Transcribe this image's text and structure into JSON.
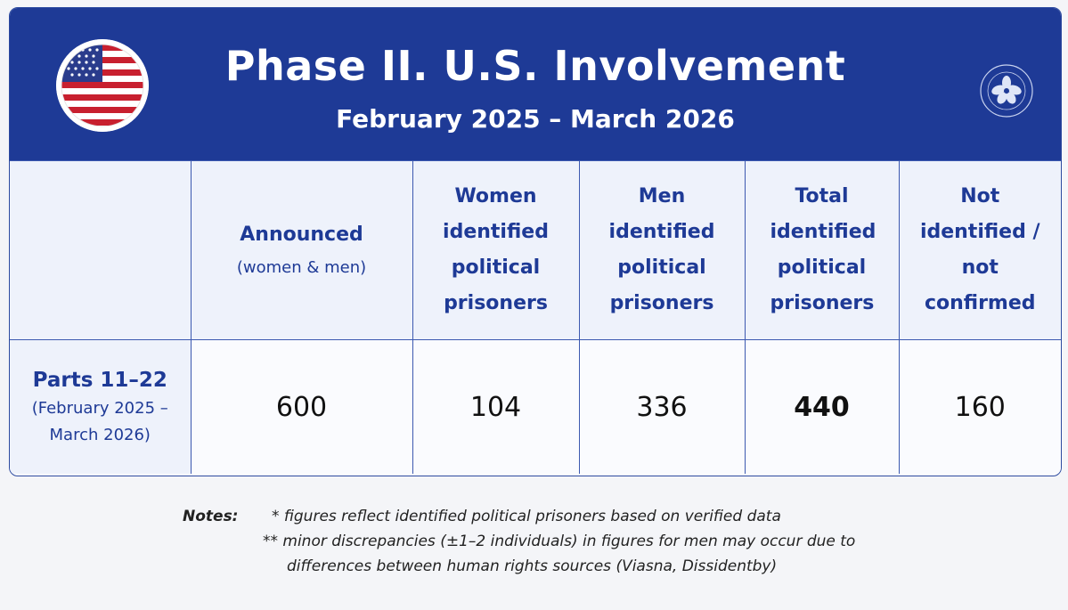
{
  "header": {
    "title": "Phase II. U.S. Involvement",
    "subtitle": "February 2025 – March 2026",
    "flag_icon": "us-flag-icon",
    "seal_icon": "flower-seal-icon"
  },
  "table": {
    "columns": [
      {
        "label": "",
        "sub": ""
      },
      {
        "label": "Announced",
        "sub": "(women & men)"
      },
      {
        "label": "Women identified political prisoners",
        "sub": ""
      },
      {
        "label": "Men identified political prisoners",
        "sub": ""
      },
      {
        "label": "Total identified political prisoners",
        "sub": ""
      },
      {
        "label": "Not identified / not confirmed",
        "sub": ""
      }
    ],
    "rows": [
      {
        "label": "Parts 11–22",
        "sub": "(February 2025 – March 2026)",
        "announced": "600",
        "women": "104",
        "men": "336",
        "total": "440",
        "not_identified": "160"
      }
    ]
  },
  "notes": {
    "label": "Notes:",
    "items": [
      "*  figures reflect identified political prisoners based on verified data",
      "**  minor discrepancies (±1–2 individuals) in figures for men may occur due to",
      "differences between human rights sources (Viasna, Dissidentby)"
    ]
  },
  "colors": {
    "banner": "#1e3a96",
    "accent": "#1e3a96",
    "header_cell": "#eef2fb"
  }
}
